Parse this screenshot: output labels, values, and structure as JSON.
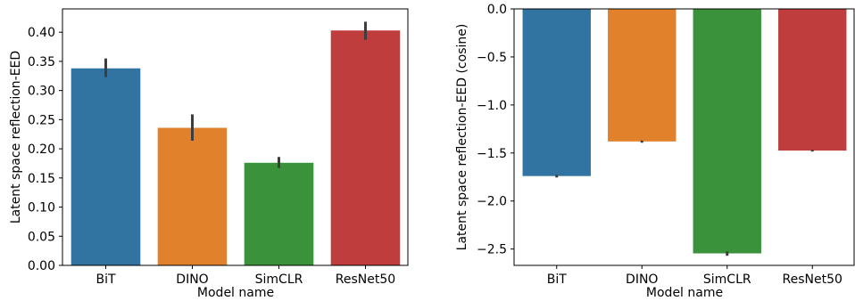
{
  "chart_data": [
    {
      "type": "bar",
      "categories": [
        "BiT",
        "DINO",
        "SimCLR",
        "ResNet50"
      ],
      "values": [
        0.338,
        0.236,
        0.176,
        0.403
      ],
      "error_low": [
        0.323,
        0.214,
        0.167,
        0.387
      ],
      "error_high": [
        0.355,
        0.259,
        0.186,
        0.418
      ],
      "colors": [
        "#3274a1",
        "#e1812c",
        "#3a923a",
        "#c03d3e"
      ],
      "xlabel": "Model name",
      "ylabel": "Latent space reflection-EED",
      "ylim": [
        0.0,
        0.44
      ],
      "yticks": [
        0.0,
        0.05,
        0.1,
        0.15,
        0.2,
        0.25,
        0.3,
        0.35,
        0.4
      ],
      "ytick_labels": [
        "0.00",
        "0.05",
        "0.10",
        "0.15",
        "0.20",
        "0.25",
        "0.30",
        "0.35",
        "0.40"
      ],
      "grid": false
    },
    {
      "type": "bar",
      "categories": [
        "BiT",
        "DINO",
        "SimCLR",
        "ResNet50"
      ],
      "values": [
        -1.74,
        -1.38,
        -2.545,
        -1.475
      ],
      "error_low": [
        -1.755,
        -1.393,
        -2.57,
        -1.485
      ],
      "error_high": [
        -1.728,
        -1.37,
        -2.525,
        -1.467
      ],
      "colors": [
        "#3274a1",
        "#e1812c",
        "#3a923a",
        "#c03d3e"
      ],
      "xlabel": "Model name",
      "ylabel": "Latent space reflection-EED (cosine)",
      "ylim": [
        -2.67,
        0.0
      ],
      "yticks": [
        0.0,
        -0.5,
        -1.0,
        -1.5,
        -2.0,
        -2.5
      ],
      "ytick_labels": [
        "0.0",
        "−0.5",
        "−1.0",
        "−1.5",
        "−2.0",
        "−2.5"
      ],
      "grid": false
    }
  ]
}
